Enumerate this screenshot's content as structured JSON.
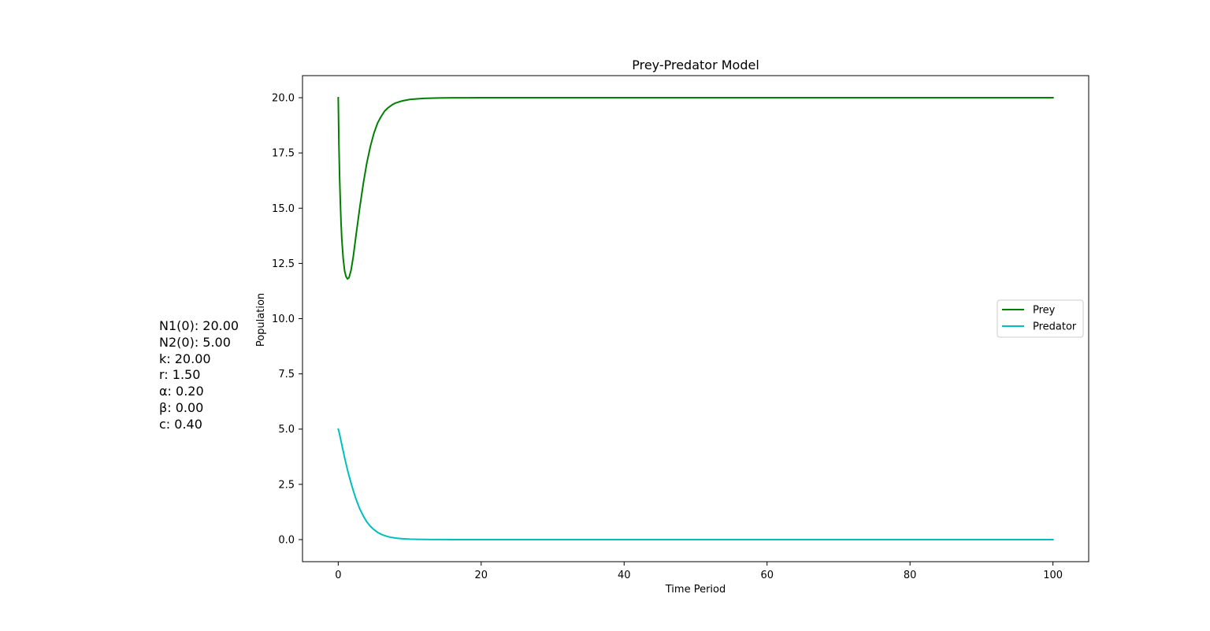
{
  "chart_data": {
    "type": "line",
    "title": "Prey-Predator Model",
    "xlabel": "Time Period",
    "ylabel": "Population",
    "xlim": [
      -5,
      105
    ],
    "ylim": [
      -1,
      21
    ],
    "xticks": [
      0,
      20,
      40,
      60,
      80,
      100
    ],
    "xtick_labels": [
      "0",
      "20",
      "40",
      "60",
      "80",
      "100"
    ],
    "yticks": [
      0,
      2.5,
      5,
      7.5,
      10,
      12.5,
      15,
      17.5,
      20
    ],
    "ytick_labels": [
      "0.0",
      "2.5",
      "5.0",
      "7.5",
      "10.0",
      "12.5",
      "15.0",
      "17.5",
      "20.0"
    ],
    "grid": false,
    "legend_position": "center-right",
    "x": [
      0,
      0.1,
      0.2,
      0.3,
      0.4,
      0.5,
      0.7,
      0.9,
      1.1,
      1.3,
      1.5,
      1.8,
      2.1,
      2.5,
      3,
      3.5,
      4,
      4.5,
      5,
      5.5,
      6,
      6.5,
      7,
      7.5,
      8,
      9,
      10,
      11,
      12,
      13,
      14,
      15,
      16,
      18,
      20,
      22,
      25,
      30,
      40,
      50,
      60,
      70,
      80,
      90,
      100
    ],
    "series": [
      {
        "name": "Prey",
        "color": "#008000",
        "values": [
          20,
          17.8,
          16.3,
          15.2,
          14.3,
          13.6,
          12.7,
          12.15,
          11.9,
          11.8,
          11.85,
          12.2,
          12.8,
          13.8,
          15.0,
          16.1,
          17.05,
          17.8,
          18.4,
          18.85,
          19.15,
          19.4,
          19.55,
          19.67,
          19.76,
          19.86,
          19.92,
          19.95,
          19.97,
          19.98,
          19.99,
          19.995,
          19.997,
          19.999,
          20,
          20,
          20,
          20,
          20,
          20,
          20,
          20,
          20,
          20,
          20
        ]
      },
      {
        "name": "Predator",
        "color": "#00bfbf",
        "values": [
          5.0,
          4.9,
          4.75,
          4.6,
          4.45,
          4.3,
          4.0,
          3.7,
          3.42,
          3.15,
          2.9,
          2.55,
          2.22,
          1.82,
          1.4,
          1.07,
          0.8,
          0.6,
          0.45,
          0.33,
          0.24,
          0.18,
          0.13,
          0.095,
          0.07,
          0.037,
          0.02,
          0.011,
          0.006,
          0.003,
          0.0015,
          0.0008,
          0.0004,
          0.0001,
          0,
          0,
          0,
          0,
          0,
          0,
          0,
          0,
          0,
          0,
          0
        ]
      }
    ],
    "annotations": [
      "N1(0): 20.00",
      "N2(0): 5.00",
      "k: 20.00",
      "r: 1.50",
      "α: 0.20",
      "β: 0.00",
      "c: 0.40"
    ]
  }
}
